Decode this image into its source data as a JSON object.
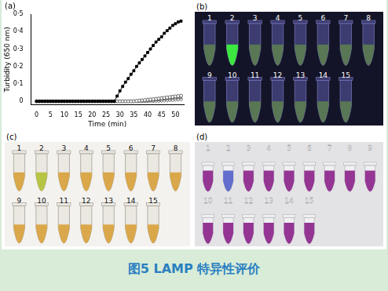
{
  "chart_data": {
    "type": "line",
    "panel_label": "(a)",
    "x_label": "Time (min)",
    "y_label": "Turbidity (650 nm)",
    "x": [
      0,
      1,
      2,
      3,
      4,
      5,
      6,
      7,
      8,
      9,
      10,
      11,
      12,
      13,
      14,
      15,
      16,
      17,
      18,
      19,
      20,
      21,
      22,
      23,
      24,
      25,
      26,
      27,
      28,
      29,
      30,
      31,
      32,
      33,
      34,
      35,
      36,
      37,
      38,
      39,
      40,
      41,
      42,
      43,
      44,
      45,
      46,
      47,
      48,
      49,
      50,
      51,
      52
    ],
    "series": [
      {
        "color": "#000000",
        "marker": "filled_square",
        "values": [
          0,
          0,
          0,
          0,
          0,
          0,
          0,
          0,
          0,
          0,
          0,
          0,
          0,
          0,
          0,
          0,
          0,
          0,
          0,
          0,
          0,
          0,
          0,
          0,
          0,
          0,
          0,
          0,
          0,
          0.03,
          0.06,
          0.085,
          0.11,
          0.13,
          0.155,
          0.175,
          0.2,
          0.22,
          0.24,
          0.26,
          0.28,
          0.3,
          0.32,
          0.34,
          0.355,
          0.37,
          0.39,
          0.405,
          0.42,
          0.435,
          0.445,
          0.455,
          0.46
        ]
      },
      {
        "color": "#666666",
        "marker": "open_circle",
        "values": [
          0,
          0,
          0,
          0,
          0,
          0,
          0,
          0,
          0,
          0,
          0,
          0,
          0,
          0,
          0,
          0,
          0,
          0,
          0,
          0,
          0,
          0,
          0,
          0,
          0,
          0,
          0,
          0,
          0,
          0,
          0,
          0,
          0,
          0,
          0,
          0,
          0.002,
          0.004,
          0.005,
          0.007,
          0.009,
          0.011,
          0.012,
          0.014,
          0.016,
          0.018,
          0.02,
          0.022,
          0.024,
          0.026,
          0.028,
          0.03,
          0.032
        ]
      },
      {
        "color": "#666666",
        "marker": "open_triangle",
        "values": [
          0,
          0,
          0,
          0,
          0,
          0,
          0,
          0,
          0,
          0,
          0,
          0,
          0,
          0,
          0,
          0,
          0,
          0,
          0,
          0,
          0,
          0,
          0,
          0,
          0,
          0,
          0,
          0,
          0,
          0,
          0,
          0,
          0,
          0,
          0,
          0,
          0,
          0,
          0,
          0,
          0.002,
          0.004,
          0.005,
          0.007,
          0.008,
          0.01,
          0.012,
          0.013,
          0.015,
          0.017,
          0.018,
          0.02,
          0.022
        ]
      },
      {
        "color": "#666666",
        "marker": "open_diamond",
        "values": [
          0,
          0,
          0,
          0,
          0,
          0,
          0,
          0,
          0,
          0,
          0,
          0,
          0,
          0,
          0,
          0,
          0,
          0,
          0,
          0,
          0,
          0,
          0,
          0,
          0,
          0,
          0,
          0,
          0,
          0,
          0,
          0,
          0,
          0,
          0,
          0,
          0,
          0,
          0,
          0,
          0,
          0,
          0,
          0,
          0.001,
          0.002,
          0.003,
          0.004,
          0.005,
          0.006,
          0.008,
          0.009,
          0.01
        ]
      }
    ],
    "xlim": [
      -2,
      53
    ],
    "ylim": [
      -0.02,
      0.5
    ],
    "xticks": [
      0,
      5,
      10,
      15,
      20,
      25,
      30,
      35,
      40,
      45,
      50
    ],
    "yticks": [
      0,
      {
        "value": 0.1,
        "label": "0·1"
      },
      {
        "value": 0.2,
        "label": "0·2"
      },
      {
        "value": 0.3,
        "label": "0·3"
      },
      {
        "value": 0.4,
        "label": "0·4"
      },
      {
        "value": 0.5,
        "label": "0·5"
      }
    ],
    "grid": false
  },
  "panels": [
    {
      "label": "(b)",
      "rows": [
        {
          "labels": [
            1,
            2,
            3,
            4,
            5,
            6,
            7,
            8
          ],
          "colors": [
            "#5b7a52",
            "#3cf03c",
            "#5b7a52",
            "#5b7a52",
            "#5b7a52",
            "#5b7a52",
            "#5b7a52",
            "#5b7a52"
          ]
        },
        {
          "labels": [
            9,
            10,
            11,
            12,
            13,
            14,
            15
          ],
          "colors": [
            "#5b7a52",
            "#5b7a52",
            "#5b7a52",
            "#5b7a52",
            "#5b7a52",
            "#5b7a52",
            "#5b7a52"
          ]
        }
      ]
    },
    {
      "label": "(c)",
      "rows": [
        {
          "labels": [
            1,
            2,
            3,
            4,
            5,
            6,
            7,
            8
          ],
          "colors": [
            "#d9a441",
            "#b5c23a",
            "#d9a441",
            "#d9a441",
            "#d9a441",
            "#d9a441",
            "#d9a441",
            "#d9a441"
          ]
        },
        {
          "labels": [
            9,
            10,
            11,
            12,
            13,
            14,
            15
          ],
          "colors": [
            "#d9a441",
            "#d9a441",
            "#d9a441",
            "#d9a441",
            "#d9a441",
            "#d9a441",
            "#d9a441"
          ]
        }
      ]
    },
    {
      "label": "(d)",
      "rows": [
        {
          "labels": [
            1,
            2,
            3,
            4,
            5,
            6,
            7,
            8,
            9
          ],
          "colors": [
            "#8e2a8e",
            "#5a66c8",
            "#8e2a8e",
            "#8e2a8e",
            "#8e2a8e",
            "#8e2a8e",
            "#8e2a8e",
            "#8e2a8e",
            "#8e2a8e"
          ]
        },
        {
          "labels": [
            10,
            11,
            12,
            13,
            14,
            15
          ],
          "colors": [
            "#8e2a8e",
            "#8e2a8e",
            "#8e2a8e",
            "#8e2a8e",
            "#8e2a8e",
            "#8e2a8e"
          ]
        }
      ]
    }
  ],
  "caption": "图5 LAMP 特异性评价"
}
